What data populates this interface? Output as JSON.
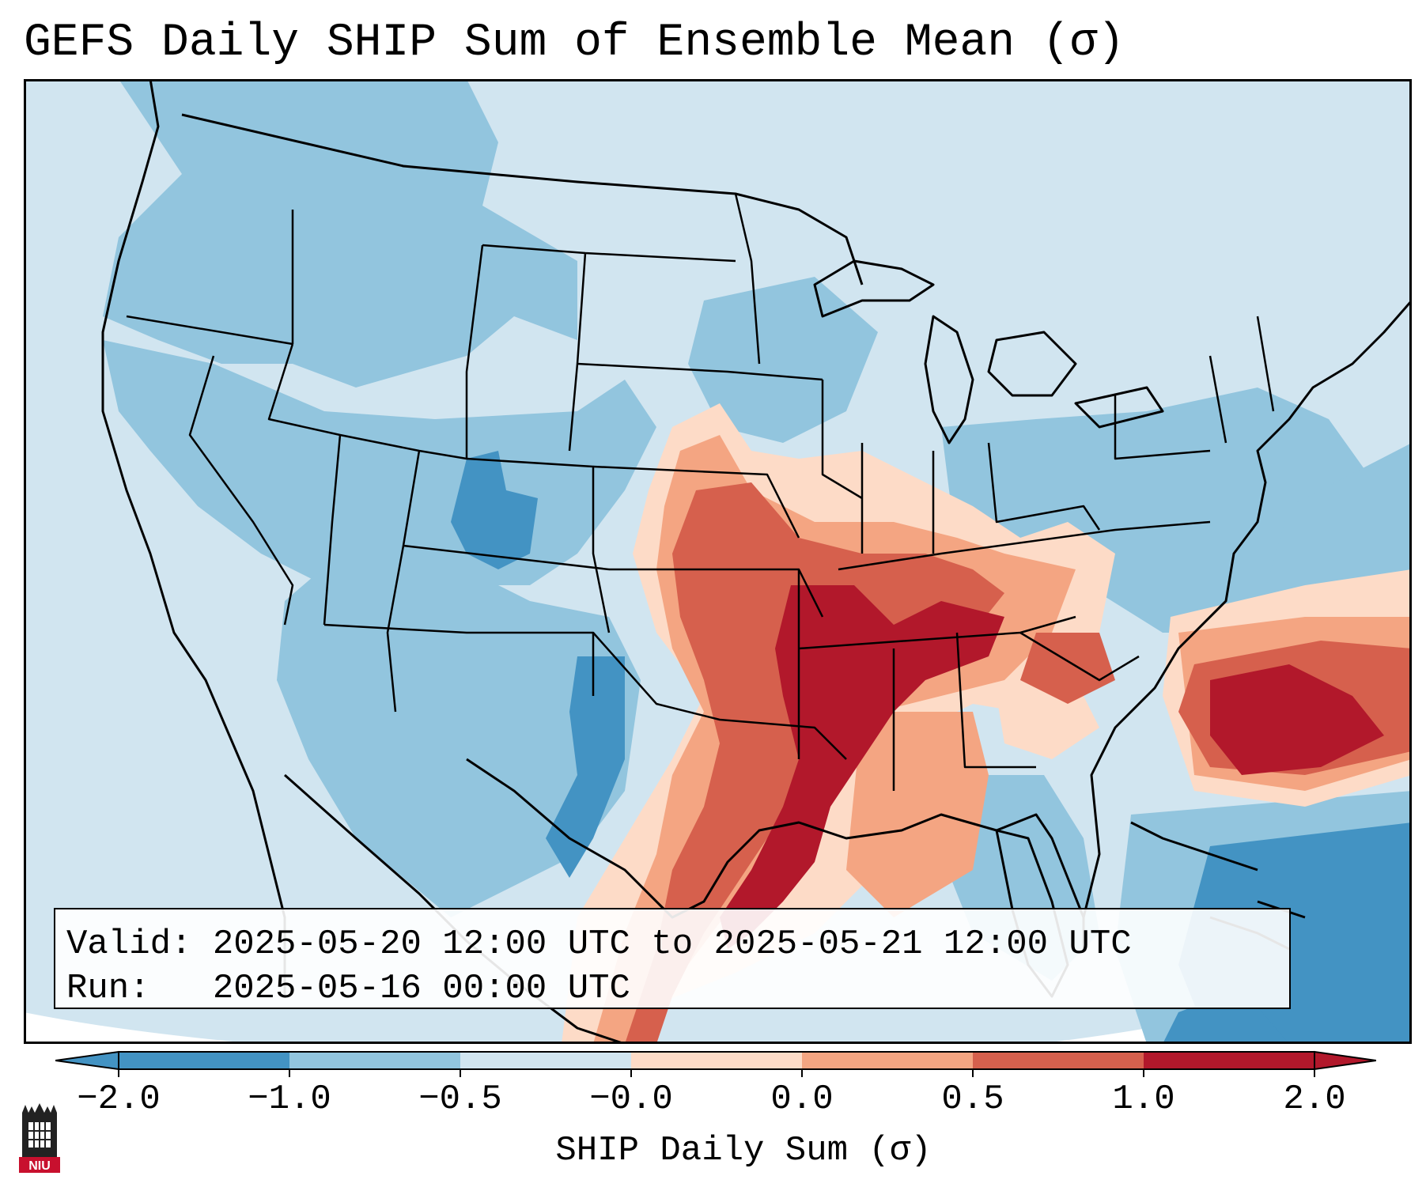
{
  "title": "GEFS Daily SHIP Sum of Ensemble Mean (σ)",
  "info": {
    "valid_label": "Valid:",
    "valid_text": "2025-05-20 12:00 UTC to 2025-05-21 12:00 UTC",
    "run_label": "Run:",
    "run_text": "2025-05-16 00:00 UTC"
  },
  "colorbar": {
    "label": "SHIP Daily Sum (σ)",
    "ticks": [
      "−2.0",
      "−1.0",
      "−0.5",
      "−0.0",
      "0.0",
      "0.5",
      "1.0",
      "2.0"
    ],
    "colors": [
      "#4393c3",
      "#92c5de",
      "#d1e5f0",
      "#f7f7f7",
      "#fddbc7",
      "#f4a582",
      "#d6604d",
      "#b2182b"
    ]
  },
  "logo": {
    "text": "NIU",
    "color": "#c8102e"
  },
  "colors": {
    "background": "#d1e5f0",
    "strong_negative": "#4393c3",
    "negative": "#92c5de",
    "near_zero": "#f7f7f7",
    "weak_positive": "#fddbc7",
    "positive": "#f4a582",
    "strong_positive": "#d6604d",
    "very_strong_positive": "#b2182b"
  }
}
